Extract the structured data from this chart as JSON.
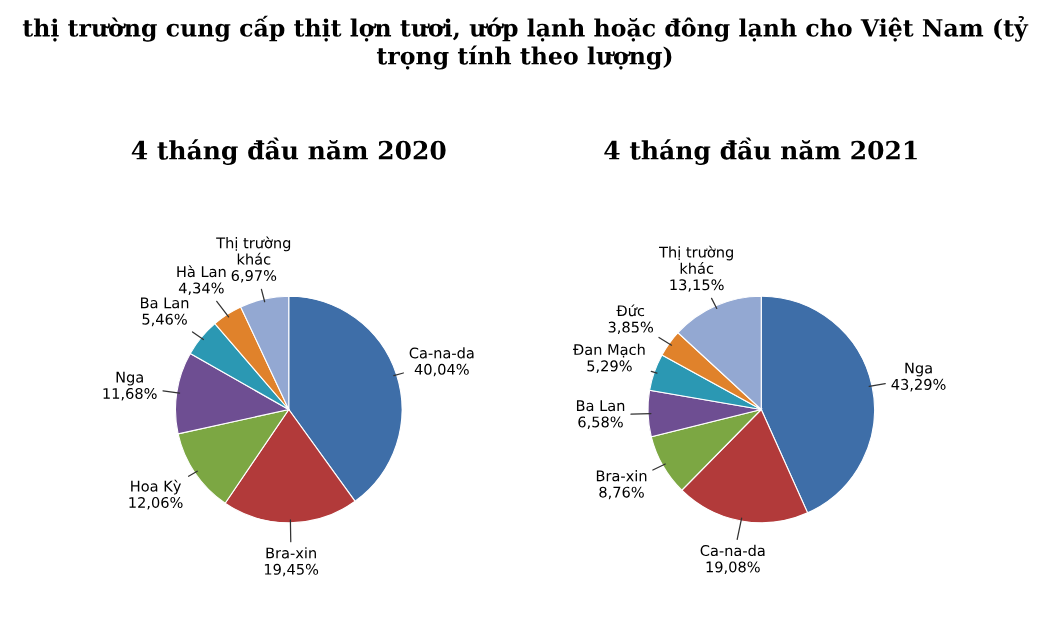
{
  "chart_data": [
    {
      "type": "pie",
      "title": "4 tháng đầu năm 2020",
      "annotations": [
        "thị trường cung cấp thịt lợn tươi, ướp lạnh hoặc đông lạnh cho Việt Nam (tỷ trọng tính theo lượng)"
      ],
      "categories": [
        "Ca-na-da",
        "Bra-xin",
        "Hoa Kỳ",
        "Nga",
        "Ba Lan",
        "Hà Lan",
        "Thị trường khác"
      ],
      "values": [
        40.04,
        19.45,
        12.06,
        11.68,
        5.46,
        4.34,
        6.97
      ],
      "value_labels": [
        "40,04%",
        "19,45%",
        "12,06%",
        "11,68%",
        "5,46%",
        "4,34%",
        "6,97%"
      ],
      "colors": [
        "#3e6ea8",
        "#b23a3a",
        "#7ca743",
        "#6e4e92",
        "#2b98b3",
        "#e0822b",
        "#93a8d2"
      ]
    },
    {
      "type": "pie",
      "title": "4 tháng đầu năm 2021",
      "categories": [
        "Nga",
        "Ca-na-da",
        "Bra-xin",
        "Ba Lan",
        "Đan Mạch",
        "Đức",
        "Thị trường khác"
      ],
      "values": [
        43.29,
        19.08,
        8.76,
        6.58,
        5.29,
        3.85,
        13.15
      ],
      "value_labels": [
        "43,29%",
        "19,08%",
        "8,76%",
        "6,58%",
        "5,29%",
        "3,85%",
        "13,15%"
      ],
      "colors": [
        "#3e6ea8",
        "#b23a3a",
        "#7ca743",
        "#6e4e92",
        "#2b98b3",
        "#e0822b",
        "#93a8d2"
      ]
    }
  ]
}
